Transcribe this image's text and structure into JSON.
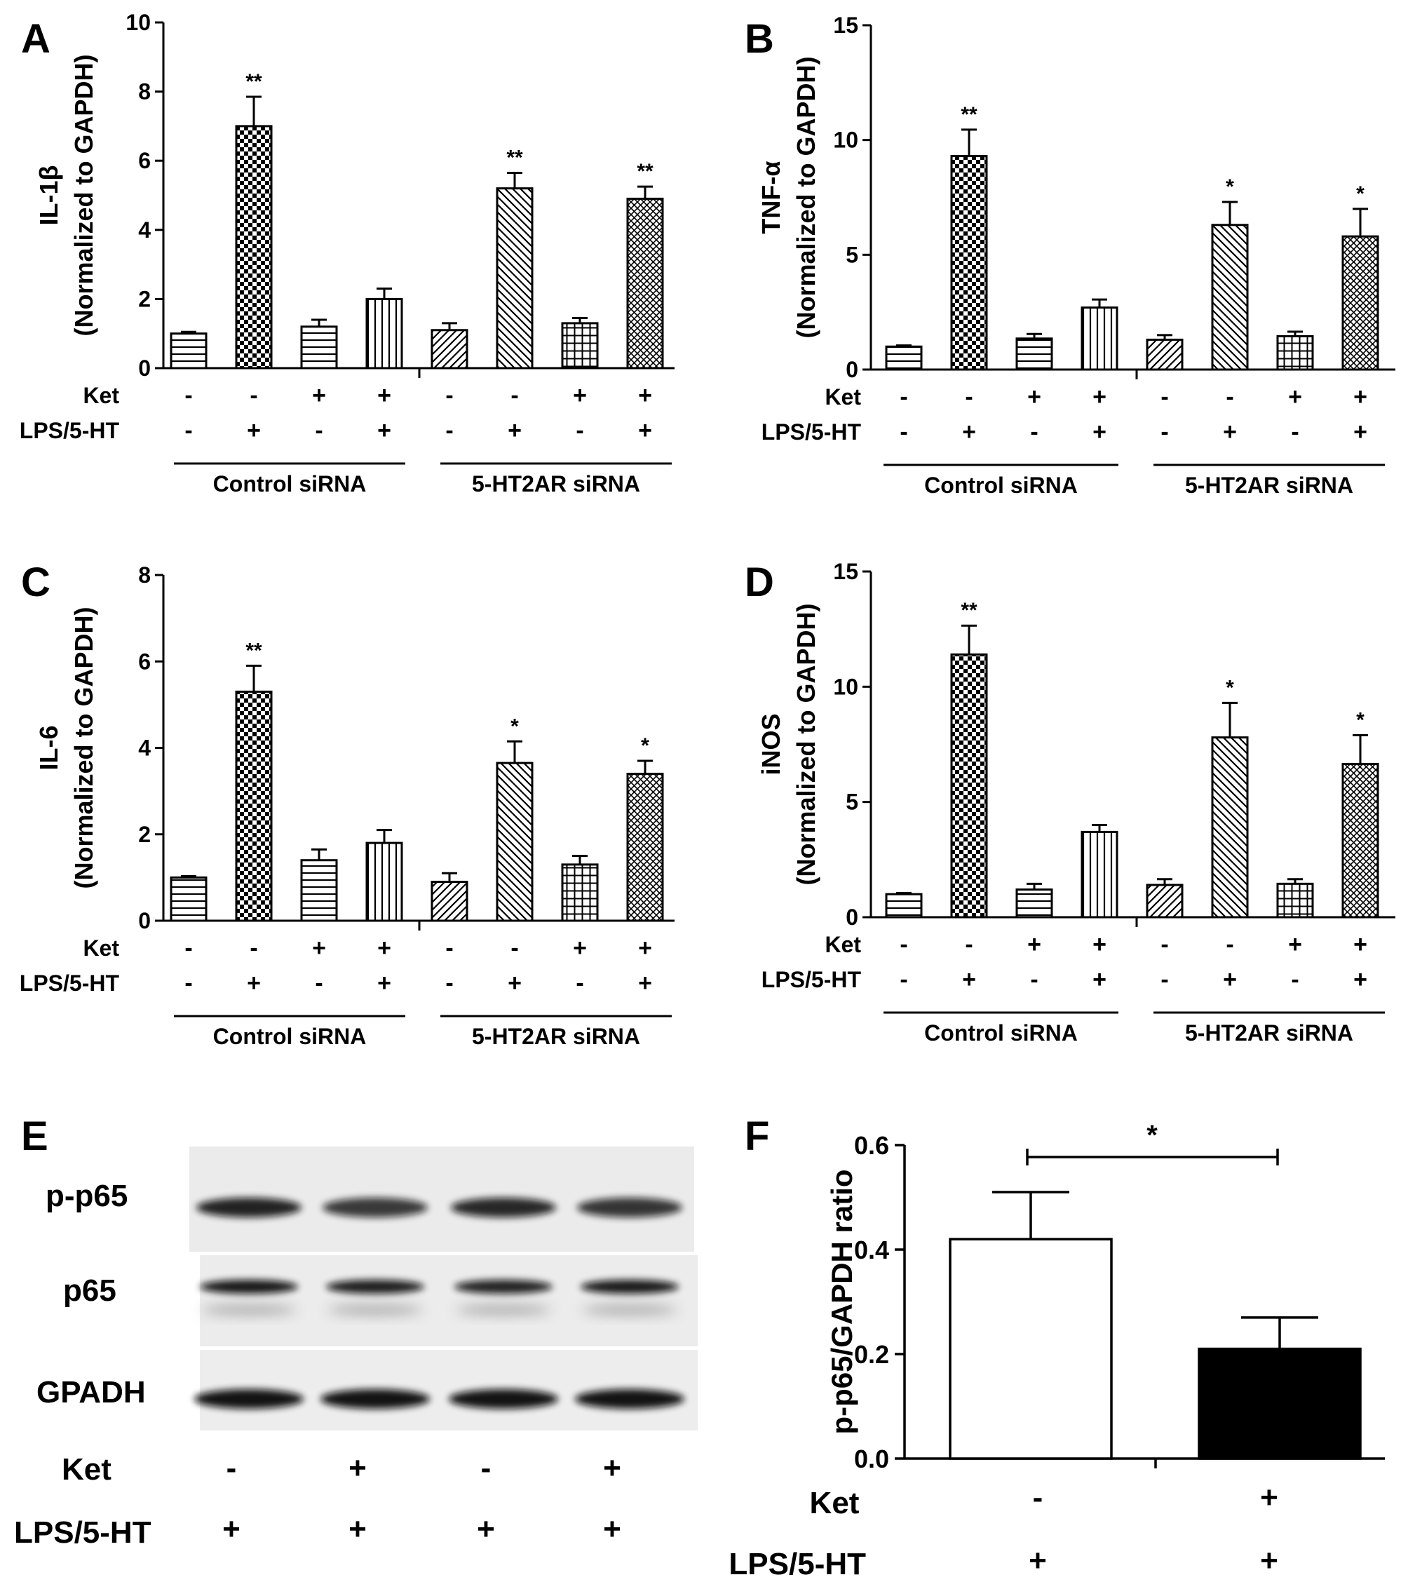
{
  "conditions": {
    "ket_label": "Ket",
    "lps_label": "LPS/5-HT",
    "ket": [
      "-",
      "-",
      "+",
      "+",
      "-",
      "-",
      "+",
      "+"
    ],
    "lps": [
      "-",
      "+",
      "-",
      "+",
      "-",
      "+",
      "-",
      "+"
    ],
    "groups": [
      "Control siRNA",
      "5-HT2AR siRNA"
    ]
  },
  "chart_data": [
    {
      "panel": "A",
      "type": "bar",
      "ylabel_top": "IL-1β",
      "ylabel_bottom": "(Normalized to GAPDH)",
      "ylim": [
        0,
        10
      ],
      "yticks": [
        "0",
        "2",
        "4",
        "6",
        "8",
        "10"
      ],
      "values": [
        1.0,
        7.0,
        1.2,
        2.0,
        1.1,
        5.2,
        1.3,
        4.9
      ],
      "errors": [
        0.05,
        0.85,
        0.2,
        0.3,
        0.2,
        0.45,
        0.15,
        0.35
      ],
      "significance": [
        "",
        "**",
        "",
        "",
        "",
        "**",
        "",
        "**"
      ]
    },
    {
      "panel": "B",
      "type": "bar",
      "ylabel_top": "TNF-α",
      "ylabel_bottom": "(Normalized to GAPDH)",
      "ylim": [
        0,
        15
      ],
      "yticks": [
        "0",
        "5",
        "10",
        "15"
      ],
      "values": [
        1.0,
        9.3,
        1.35,
        2.7,
        1.3,
        6.3,
        1.45,
        5.8
      ],
      "errors": [
        0.05,
        1.15,
        0.2,
        0.35,
        0.2,
        1.0,
        0.2,
        1.2
      ],
      "significance": [
        "",
        "**",
        "",
        "",
        "",
        "*",
        "",
        "*"
      ]
    },
    {
      "panel": "C",
      "type": "bar",
      "ylabel_top": "IL-6",
      "ylabel_bottom": "(Normalized to GAPDH)",
      "ylim": [
        0,
        8
      ],
      "yticks": [
        "0",
        "2",
        "4",
        "6",
        "8"
      ],
      "values": [
        1.0,
        5.3,
        1.4,
        1.8,
        0.9,
        3.65,
        1.3,
        3.4
      ],
      "errors": [
        0.03,
        0.6,
        0.25,
        0.3,
        0.2,
        0.5,
        0.2,
        0.3
      ],
      "significance": [
        "",
        "**",
        "",
        "",
        "",
        "*",
        "",
        "*"
      ]
    },
    {
      "panel": "D",
      "type": "bar",
      "ylabel_top": "iNOS",
      "ylabel_bottom": "(Normalized to GAPDH)",
      "ylim": [
        0,
        15
      ],
      "yticks": [
        "0",
        "5",
        "10",
        "15"
      ],
      "values": [
        1.0,
        11.4,
        1.2,
        3.7,
        1.4,
        7.8,
        1.45,
        6.65
      ],
      "errors": [
        0.05,
        1.25,
        0.25,
        0.3,
        0.25,
        1.5,
        0.2,
        1.25
      ],
      "significance": [
        "",
        "**",
        "",
        "",
        "",
        "*",
        "",
        "*"
      ]
    },
    {
      "panel": "F",
      "type": "bar",
      "ylabel": "p-p65/GAPDH ratio",
      "ylim": [
        0,
        0.6
      ],
      "yticks": [
        "0.0",
        "0.2",
        "0.4",
        "0.6"
      ],
      "ket": [
        "-",
        "+"
      ],
      "lps": [
        "+",
        "+"
      ],
      "values": [
        0.42,
        0.21
      ],
      "errors": [
        0.09,
        0.06
      ],
      "colors": [
        "#ffffff",
        "#000000"
      ],
      "significance": "*"
    }
  ],
  "western_blot": {
    "panel": "E",
    "bands": [
      "p-p65",
      "p65",
      "GPADH"
    ],
    "ket": [
      "-",
      "+",
      "-",
      "+"
    ],
    "lps": [
      "+",
      "+",
      "+",
      "+"
    ]
  }
}
